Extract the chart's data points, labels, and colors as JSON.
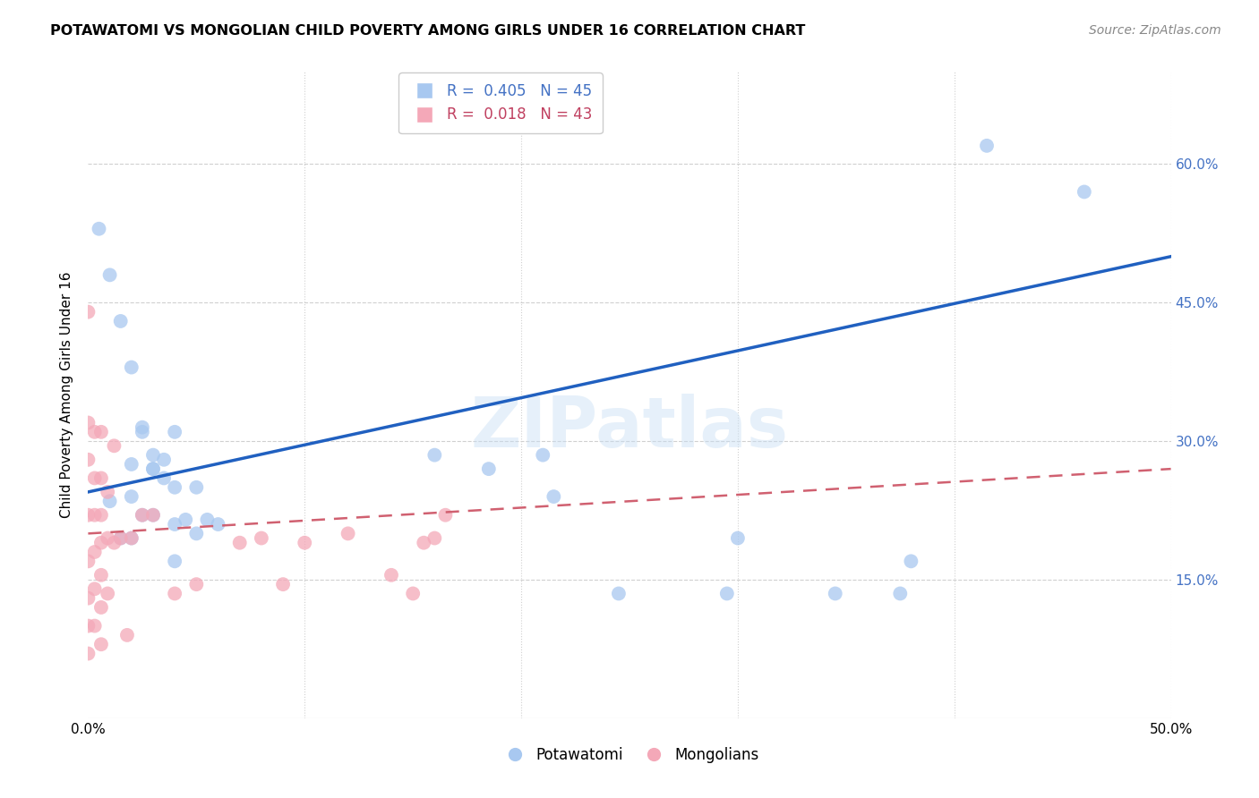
{
  "title": "POTAWATOMI VS MONGOLIAN CHILD POVERTY AMONG GIRLS UNDER 16 CORRELATION CHART",
  "source": "Source: ZipAtlas.com",
  "ylabel": "Child Poverty Among Girls Under 16",
  "xlim": [
    0.0,
    0.5
  ],
  "ylim": [
    0.0,
    0.7
  ],
  "xticks": [
    0.0,
    0.1,
    0.2,
    0.3,
    0.4,
    0.5
  ],
  "xticklabels": [
    "0.0%",
    "",
    "",
    "",
    "",
    "50.0%"
  ],
  "yticks_right": [
    0.15,
    0.3,
    0.45,
    0.6
  ],
  "yticklabels_right": [
    "15.0%",
    "30.0%",
    "45.0%",
    "60.0%"
  ],
  "watermark": "ZIPatlas",
  "potawatomi_color": "#a8c8f0",
  "mongolian_color": "#f4a8b8",
  "trend_blue_color": "#2060c0",
  "trend_pink_color": "#d06070",
  "background_color": "#ffffff",
  "grid_color": "#e8e8e8",
  "right_tick_color": "#4472c4",
  "potawatomi_x": [
    0.005,
    0.01,
    0.015,
    0.02,
    0.02,
    0.025,
    0.025,
    0.03,
    0.03,
    0.03,
    0.035,
    0.04,
    0.04,
    0.04,
    0.04,
    0.045,
    0.05,
    0.05,
    0.055,
    0.06,
    0.01,
    0.015,
    0.02,
    0.02,
    0.025,
    0.03,
    0.035,
    0.16,
    0.185,
    0.21,
    0.215,
    0.245,
    0.295,
    0.3,
    0.345,
    0.375,
    0.38,
    0.415,
    0.46
  ],
  "potawatomi_y": [
    0.53,
    0.48,
    0.43,
    0.38,
    0.275,
    0.315,
    0.31,
    0.285,
    0.27,
    0.22,
    0.26,
    0.31,
    0.25,
    0.21,
    0.17,
    0.215,
    0.25,
    0.2,
    0.215,
    0.21,
    0.235,
    0.195,
    0.24,
    0.195,
    0.22,
    0.27,
    0.28,
    0.285,
    0.27,
    0.285,
    0.24,
    0.135,
    0.135,
    0.195,
    0.135,
    0.135,
    0.17,
    0.62,
    0.57
  ],
  "mongolian_x": [
    0.0,
    0.0,
    0.0,
    0.0,
    0.0,
    0.0,
    0.0,
    0.0,
    0.003,
    0.003,
    0.003,
    0.003,
    0.003,
    0.003,
    0.006,
    0.006,
    0.006,
    0.006,
    0.006,
    0.006,
    0.006,
    0.009,
    0.009,
    0.009,
    0.012,
    0.012,
    0.015,
    0.018,
    0.02,
    0.025,
    0.03,
    0.04,
    0.05,
    0.07,
    0.08,
    0.09,
    0.1,
    0.12,
    0.14,
    0.15,
    0.155,
    0.16,
    0.165
  ],
  "mongolian_y": [
    0.44,
    0.32,
    0.28,
    0.22,
    0.17,
    0.13,
    0.1,
    0.07,
    0.31,
    0.26,
    0.22,
    0.18,
    0.14,
    0.1,
    0.31,
    0.26,
    0.22,
    0.19,
    0.155,
    0.12,
    0.08,
    0.245,
    0.195,
    0.135,
    0.295,
    0.19,
    0.195,
    0.09,
    0.195,
    0.22,
    0.22,
    0.135,
    0.145,
    0.19,
    0.195,
    0.145,
    0.19,
    0.2,
    0.155,
    0.135,
    0.19,
    0.195,
    0.22
  ],
  "trend_blue_x0": 0.0,
  "trend_blue_y0": 0.245,
  "trend_blue_x1": 0.5,
  "trend_blue_y1": 0.5,
  "trend_pink_x0": 0.0,
  "trend_pink_y0": 0.2,
  "trend_pink_x1": 0.5,
  "trend_pink_y1": 0.27
}
